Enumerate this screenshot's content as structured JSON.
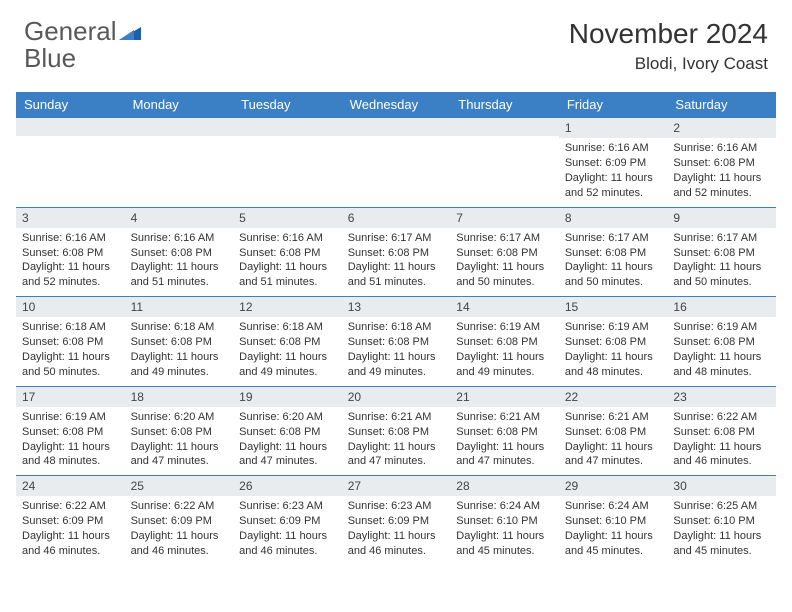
{
  "logo": {
    "word1": "General",
    "word2": "Blue"
  },
  "title": "November 2024",
  "location": "Blodi, Ivory Coast",
  "colors": {
    "header_bar": "#3b7fc4",
    "row_border": "#3b7fc4",
    "daynum_bg": "#e9ecef",
    "logo_gray": "#595959",
    "logo_blue": "#2c6fbb",
    "text": "#333333",
    "background": "#ffffff"
  },
  "days_of_week": [
    "Sunday",
    "Monday",
    "Tuesday",
    "Wednesday",
    "Thursday",
    "Friday",
    "Saturday"
  ],
  "weeks": [
    [
      {
        "day": null
      },
      {
        "day": null
      },
      {
        "day": null
      },
      {
        "day": null
      },
      {
        "day": null
      },
      {
        "day": "1",
        "sunrise": "Sunrise: 6:16 AM",
        "sunset": "Sunset: 6:09 PM",
        "daylight1": "Daylight: 11 hours",
        "daylight2": "and 52 minutes."
      },
      {
        "day": "2",
        "sunrise": "Sunrise: 6:16 AM",
        "sunset": "Sunset: 6:08 PM",
        "daylight1": "Daylight: 11 hours",
        "daylight2": "and 52 minutes."
      }
    ],
    [
      {
        "day": "3",
        "sunrise": "Sunrise: 6:16 AM",
        "sunset": "Sunset: 6:08 PM",
        "daylight1": "Daylight: 11 hours",
        "daylight2": "and 52 minutes."
      },
      {
        "day": "4",
        "sunrise": "Sunrise: 6:16 AM",
        "sunset": "Sunset: 6:08 PM",
        "daylight1": "Daylight: 11 hours",
        "daylight2": "and 51 minutes."
      },
      {
        "day": "5",
        "sunrise": "Sunrise: 6:16 AM",
        "sunset": "Sunset: 6:08 PM",
        "daylight1": "Daylight: 11 hours",
        "daylight2": "and 51 minutes."
      },
      {
        "day": "6",
        "sunrise": "Sunrise: 6:17 AM",
        "sunset": "Sunset: 6:08 PM",
        "daylight1": "Daylight: 11 hours",
        "daylight2": "and 51 minutes."
      },
      {
        "day": "7",
        "sunrise": "Sunrise: 6:17 AM",
        "sunset": "Sunset: 6:08 PM",
        "daylight1": "Daylight: 11 hours",
        "daylight2": "and 50 minutes."
      },
      {
        "day": "8",
        "sunrise": "Sunrise: 6:17 AM",
        "sunset": "Sunset: 6:08 PM",
        "daylight1": "Daylight: 11 hours",
        "daylight2": "and 50 minutes."
      },
      {
        "day": "9",
        "sunrise": "Sunrise: 6:17 AM",
        "sunset": "Sunset: 6:08 PM",
        "daylight1": "Daylight: 11 hours",
        "daylight2": "and 50 minutes."
      }
    ],
    [
      {
        "day": "10",
        "sunrise": "Sunrise: 6:18 AM",
        "sunset": "Sunset: 6:08 PM",
        "daylight1": "Daylight: 11 hours",
        "daylight2": "and 50 minutes."
      },
      {
        "day": "11",
        "sunrise": "Sunrise: 6:18 AM",
        "sunset": "Sunset: 6:08 PM",
        "daylight1": "Daylight: 11 hours",
        "daylight2": "and 49 minutes."
      },
      {
        "day": "12",
        "sunrise": "Sunrise: 6:18 AM",
        "sunset": "Sunset: 6:08 PM",
        "daylight1": "Daylight: 11 hours",
        "daylight2": "and 49 minutes."
      },
      {
        "day": "13",
        "sunrise": "Sunrise: 6:18 AM",
        "sunset": "Sunset: 6:08 PM",
        "daylight1": "Daylight: 11 hours",
        "daylight2": "and 49 minutes."
      },
      {
        "day": "14",
        "sunrise": "Sunrise: 6:19 AM",
        "sunset": "Sunset: 6:08 PM",
        "daylight1": "Daylight: 11 hours",
        "daylight2": "and 49 minutes."
      },
      {
        "day": "15",
        "sunrise": "Sunrise: 6:19 AM",
        "sunset": "Sunset: 6:08 PM",
        "daylight1": "Daylight: 11 hours",
        "daylight2": "and 48 minutes."
      },
      {
        "day": "16",
        "sunrise": "Sunrise: 6:19 AM",
        "sunset": "Sunset: 6:08 PM",
        "daylight1": "Daylight: 11 hours",
        "daylight2": "and 48 minutes."
      }
    ],
    [
      {
        "day": "17",
        "sunrise": "Sunrise: 6:19 AM",
        "sunset": "Sunset: 6:08 PM",
        "daylight1": "Daylight: 11 hours",
        "daylight2": "and 48 minutes."
      },
      {
        "day": "18",
        "sunrise": "Sunrise: 6:20 AM",
        "sunset": "Sunset: 6:08 PM",
        "daylight1": "Daylight: 11 hours",
        "daylight2": "and 47 minutes."
      },
      {
        "day": "19",
        "sunrise": "Sunrise: 6:20 AM",
        "sunset": "Sunset: 6:08 PM",
        "daylight1": "Daylight: 11 hours",
        "daylight2": "and 47 minutes."
      },
      {
        "day": "20",
        "sunrise": "Sunrise: 6:21 AM",
        "sunset": "Sunset: 6:08 PM",
        "daylight1": "Daylight: 11 hours",
        "daylight2": "and 47 minutes."
      },
      {
        "day": "21",
        "sunrise": "Sunrise: 6:21 AM",
        "sunset": "Sunset: 6:08 PM",
        "daylight1": "Daylight: 11 hours",
        "daylight2": "and 47 minutes."
      },
      {
        "day": "22",
        "sunrise": "Sunrise: 6:21 AM",
        "sunset": "Sunset: 6:08 PM",
        "daylight1": "Daylight: 11 hours",
        "daylight2": "and 47 minutes."
      },
      {
        "day": "23",
        "sunrise": "Sunrise: 6:22 AM",
        "sunset": "Sunset: 6:08 PM",
        "daylight1": "Daylight: 11 hours",
        "daylight2": "and 46 minutes."
      }
    ],
    [
      {
        "day": "24",
        "sunrise": "Sunrise: 6:22 AM",
        "sunset": "Sunset: 6:09 PM",
        "daylight1": "Daylight: 11 hours",
        "daylight2": "and 46 minutes."
      },
      {
        "day": "25",
        "sunrise": "Sunrise: 6:22 AM",
        "sunset": "Sunset: 6:09 PM",
        "daylight1": "Daylight: 11 hours",
        "daylight2": "and 46 minutes."
      },
      {
        "day": "26",
        "sunrise": "Sunrise: 6:23 AM",
        "sunset": "Sunset: 6:09 PM",
        "daylight1": "Daylight: 11 hours",
        "daylight2": "and 46 minutes."
      },
      {
        "day": "27",
        "sunrise": "Sunrise: 6:23 AM",
        "sunset": "Sunset: 6:09 PM",
        "daylight1": "Daylight: 11 hours",
        "daylight2": "and 46 minutes."
      },
      {
        "day": "28",
        "sunrise": "Sunrise: 6:24 AM",
        "sunset": "Sunset: 6:10 PM",
        "daylight1": "Daylight: 11 hours",
        "daylight2": "and 45 minutes."
      },
      {
        "day": "29",
        "sunrise": "Sunrise: 6:24 AM",
        "sunset": "Sunset: 6:10 PM",
        "daylight1": "Daylight: 11 hours",
        "daylight2": "and 45 minutes."
      },
      {
        "day": "30",
        "sunrise": "Sunrise: 6:25 AM",
        "sunset": "Sunset: 6:10 PM",
        "daylight1": "Daylight: 11 hours",
        "daylight2": "and 45 minutes."
      }
    ]
  ]
}
